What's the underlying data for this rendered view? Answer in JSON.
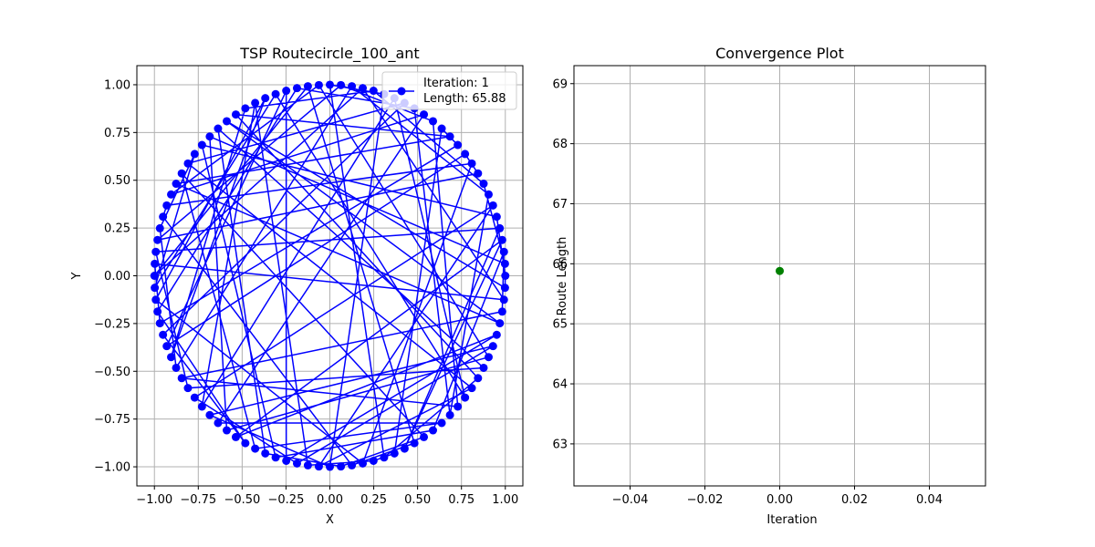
{
  "colors": {
    "route": "#0000ff",
    "convergence": "#008000",
    "grid": "#b0b0b0"
  },
  "chart_data": [
    {
      "type": "scatter",
      "title": "TSP Routecircle_100_ant",
      "xlabel": "X",
      "ylabel": "Y",
      "xlim": [
        -1.1,
        1.1
      ],
      "ylim": [
        -1.1,
        1.1
      ],
      "xticks": [
        -1.0,
        -0.75,
        -0.5,
        -0.25,
        0.0,
        0.25,
        0.5,
        0.75,
        1.0
      ],
      "xtick_labels": [
        "−1.00",
        "−0.75",
        "−0.50",
        "−0.25",
        "0.00",
        "0.25",
        "0.50",
        "0.75",
        "1.00"
      ],
      "yticks": [
        1.0,
        0.75,
        0.5,
        0.25,
        0.0,
        -0.25,
        -0.5,
        -0.75,
        -1.0
      ],
      "ytick_labels": [
        "1.00",
        "0.75",
        "0.50",
        "0.25",
        "0.00",
        "−0.25",
        "−0.50",
        "−0.75",
        "−1.00"
      ],
      "grid": true,
      "legend": {
        "placement": "top-right",
        "lines": [
          "Iteration: 1",
          "Length: 65.88"
        ]
      },
      "points": {
        "count": 100,
        "shape": "unit-circle",
        "radius": 1.0
      },
      "route_order": [
        0,
        5,
        38,
        70,
        85,
        2,
        97,
        59,
        88,
        15,
        24,
        47,
        9,
        11,
        56,
        29,
        71,
        95,
        66,
        3,
        82,
        4,
        48,
        60,
        92,
        36,
        69,
        76,
        84,
        41,
        68,
        86,
        64,
        16,
        43,
        26,
        93,
        65,
        37,
        1,
        8,
        21,
        33,
        57,
        31,
        52,
        78,
        10,
        44,
        45,
        77,
        83,
        27,
        50,
        22,
        98,
        49,
        54,
        12,
        14,
        81,
        79,
        73,
        32,
        62,
        19,
        89,
        30,
        51,
        39,
        46,
        58,
        23,
        7,
        87,
        17,
        28,
        53,
        67,
        55,
        18,
        40,
        90,
        74,
        6,
        61,
        72,
        94,
        63,
        75,
        20,
        25,
        80,
        91,
        34,
        13,
        42,
        96,
        35,
        99,
        0
      ]
    },
    {
      "type": "scatter",
      "title": "Convergence Plot",
      "xlabel": "Iteration",
      "ylabel": "Route Length",
      "xlim": [
        -0.055,
        0.055
      ],
      "ylim": [
        62.3,
        69.3
      ],
      "xticks": [
        -0.04,
        -0.02,
        0.0,
        0.02,
        0.04
      ],
      "xtick_labels": [
        "−0.04",
        "−0.02",
        "0.00",
        "0.02",
        "0.04"
      ],
      "yticks": [
        63,
        64,
        65,
        66,
        67,
        68,
        69
      ],
      "ytick_labels": [
        "63",
        "64",
        "65",
        "66",
        "67",
        "68",
        "69"
      ],
      "grid": true,
      "x": [
        0
      ],
      "y": [
        65.88
      ]
    }
  ]
}
